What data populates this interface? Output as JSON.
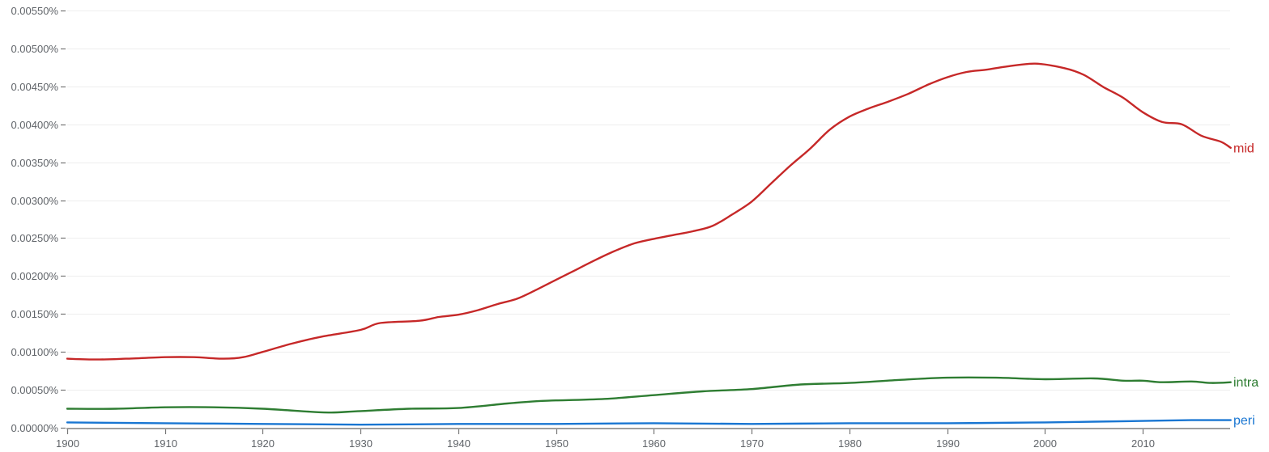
{
  "chart_data": {
    "type": "line",
    "title": "",
    "xlabel": "",
    "ylabel": "",
    "xlim": [
      1900,
      2019
    ],
    "ylim": [
      0,
      0.0055
    ],
    "grid": true,
    "legend_position": "inline-right",
    "x_ticks": [
      1900,
      1910,
      1920,
      1930,
      1940,
      1950,
      1960,
      1970,
      1980,
      1990,
      2000,
      2010
    ],
    "x_tick_labels": [
      "1900",
      "1910",
      "1920",
      "1930",
      "1940",
      "1950",
      "1960",
      "1970",
      "1980",
      "1990",
      "2000",
      "2010"
    ],
    "y_ticks": [
      0,
      0.0005,
      0.001,
      0.0015,
      0.002,
      0.0025,
      0.003,
      0.0035,
      0.004,
      0.0045,
      0.005,
      0.0055
    ],
    "y_tick_labels": [
      "0.00000%",
      "0.00050%",
      "0.00100%",
      "0.00150%",
      "0.00200%",
      "0.00250%",
      "0.00300%",
      "0.00350%",
      "0.00400%",
      "0.00450%",
      "0.00500%",
      "0.00550%"
    ],
    "series": [
      {
        "name": "mid",
        "color": "#c62828",
        "x": [
          1900,
          1903,
          1906,
          1910,
          1913,
          1916,
          1918,
          1920,
          1923,
          1926,
          1930,
          1932,
          1936,
          1938,
          1940,
          1942,
          1944,
          1946,
          1948,
          1950,
          1952,
          1954,
          1956,
          1958,
          1960,
          1962,
          1964,
          1966,
          1968,
          1970,
          1972,
          1974,
          1976,
          1978,
          1980,
          1982,
          1984,
          1986,
          1988,
          1990,
          1992,
          1994,
          1996,
          1999,
          2002,
          2004,
          2006,
          2008,
          2010,
          2012,
          2014,
          2016,
          2018,
          2019
        ],
        "values": [
          0.00091,
          0.0009,
          0.00091,
          0.00093,
          0.00093,
          0.00091,
          0.00093,
          0.001,
          0.00111,
          0.0012,
          0.00129,
          0.00138,
          0.00141,
          0.00146,
          0.00149,
          0.00155,
          0.00163,
          0.0017,
          0.00182,
          0.00195,
          0.00208,
          0.00221,
          0.00233,
          0.00243,
          0.00249,
          0.00254,
          0.00259,
          0.00266,
          0.00281,
          0.00298,
          0.00322,
          0.00346,
          0.00368,
          0.00393,
          0.0041,
          0.00421,
          0.0043,
          0.0044,
          0.00452,
          0.00462,
          0.00469,
          0.00472,
          0.00476,
          0.0048,
          0.00474,
          0.00465,
          0.00449,
          0.00435,
          0.00416,
          0.00403,
          0.004,
          0.00385,
          0.00377,
          0.00369
        ]
      },
      {
        "name": "intra",
        "color": "#2e7d32",
        "x": [
          1900,
          1905,
          1910,
          1915,
          1920,
          1925,
          1927,
          1930,
          1935,
          1940,
          1945,
          1948,
          1950,
          1955,
          1960,
          1965,
          1970,
          1975,
          1980,
          1985,
          1990,
          1995,
          2000,
          2005,
          2008,
          2010,
          2012,
          2015,
          2017,
          2019
        ],
        "values": [
          0.00025,
          0.00025,
          0.00027,
          0.00027,
          0.00025,
          0.00021,
          0.0002,
          0.00022,
          0.00025,
          0.00026,
          0.00032,
          0.00035,
          0.00036,
          0.00038,
          0.00043,
          0.00048,
          0.00051,
          0.00057,
          0.00059,
          0.00063,
          0.00066,
          0.00066,
          0.00064,
          0.00065,
          0.00062,
          0.00062,
          0.0006,
          0.00061,
          0.00059,
          0.0006
        ]
      },
      {
        "name": "peri",
        "color": "#1976d2",
        "x": [
          1900,
          1910,
          1920,
          1930,
          1940,
          1950,
          1960,
          1970,
          1980,
          1990,
          2000,
          2005,
          2010,
          2015,
          2019
        ],
        "values": [
          7e-05,
          6e-05,
          5e-05,
          4e-05,
          5e-05,
          5e-05,
          6e-05,
          5e-05,
          6e-05,
          6e-05,
          7e-05,
          8e-05,
          9e-05,
          0.0001,
          0.0001
        ]
      }
    ]
  }
}
